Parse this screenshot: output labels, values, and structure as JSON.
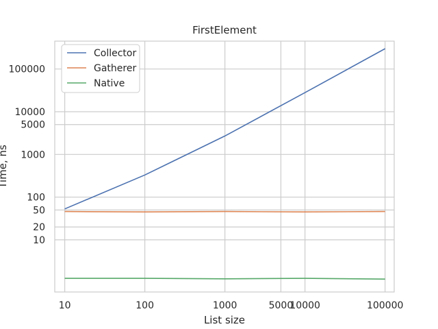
{
  "chart_data": {
    "type": "line",
    "title": "FirstElement",
    "xlabel": "List size",
    "ylabel": "Time, ns",
    "x_scale": "log",
    "y_scale": "log",
    "xlim": [
      7.5,
      130000
    ],
    "ylim": [
      0.6,
      450000
    ],
    "x": [
      10,
      100,
      1000,
      10000,
      100000
    ],
    "x_ticks": [
      10,
      100,
      1000,
      5000,
      10000,
      100000
    ],
    "x_tick_labels": [
      "10",
      "100",
      "1000",
      "5000",
      "10000",
      "100000"
    ],
    "y_ticks": [
      10,
      20,
      50,
      100,
      1000,
      5000,
      10000,
      100000
    ],
    "y_tick_labels": [
      "10",
      "20",
      "50",
      "100",
      "1000",
      "5000",
      "10000",
      "100000"
    ],
    "grid": true,
    "legend_position": "top-left",
    "series": [
      {
        "name": "Collector",
        "color": "#4c72b0",
        "values": [
          53,
          330,
          2700,
          28000,
          300000
        ]
      },
      {
        "name": "Gatherer",
        "color": "#dd8452",
        "values": [
          46,
          45,
          46,
          45,
          46
        ]
      },
      {
        "name": "Native",
        "color": "#55a868",
        "values": [
          1.25,
          1.25,
          1.22,
          1.25,
          1.2
        ]
      }
    ]
  }
}
